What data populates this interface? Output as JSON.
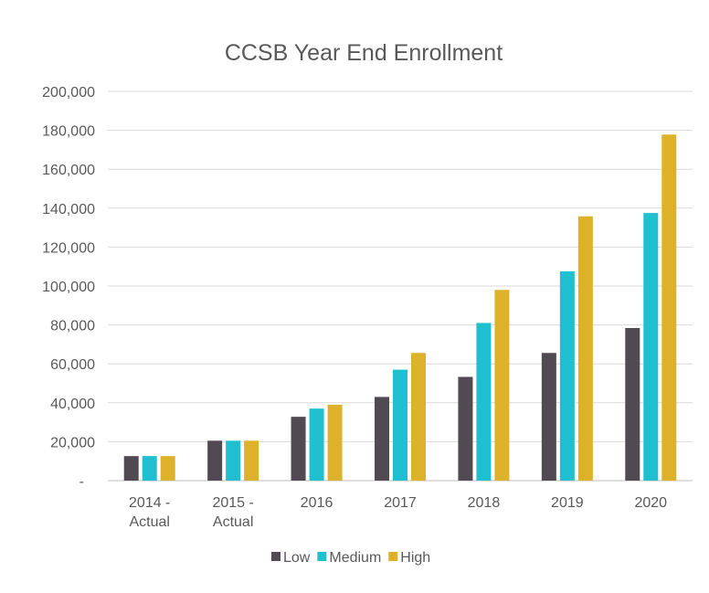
{
  "chart_data": {
    "type": "bar",
    "title": "CCSB Year End Enrollment",
    "xlabel": "",
    "ylabel": "",
    "categories": [
      [
        "2014 -",
        "Actual"
      ],
      [
        "2015 -",
        "Actual"
      ],
      [
        "2016"
      ],
      [
        "2017"
      ],
      [
        "2018"
      ],
      [
        "2019"
      ],
      [
        "2020"
      ]
    ],
    "series": [
      {
        "name": "Low",
        "color": "#524a52",
        "values": [
          12600,
          20500,
          32800,
          43000,
          53300,
          65600,
          78400
        ]
      },
      {
        "name": "Medium",
        "color": "#1fbfcf",
        "values": [
          12600,
          20500,
          37000,
          57000,
          81000,
          107500,
          137500
        ]
      },
      {
        "name": "High",
        "color": "#ddb22a",
        "values": [
          12600,
          20500,
          39000,
          65600,
          98000,
          135800,
          177800
        ]
      }
    ],
    "ylim": [
      0,
      200000
    ],
    "yticks": [
      0,
      20000,
      40000,
      60000,
      80000,
      100000,
      120000,
      140000,
      160000,
      180000,
      200000
    ],
    "ytick_labels": [
      "-",
      "20,000",
      "40,000",
      "60,000",
      "80,000",
      "100,000",
      "120,000",
      "140,000",
      "160,000",
      "180,000",
      "200,000"
    ],
    "grid": true,
    "legend": "bottom"
  }
}
